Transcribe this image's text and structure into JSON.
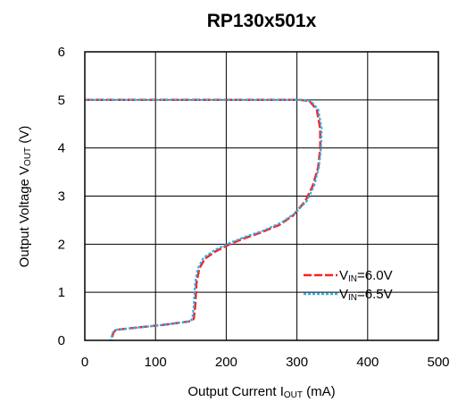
{
  "chart_data": {
    "type": "line",
    "title": "RP130x501x",
    "xlabel": "Output Current I",
    "xlabel_sub": "OUT",
    "xlabel_unit": " (mA)",
    "ylabel": "Output Voltage V",
    "ylabel_sub": "OUT",
    "ylabel_unit": " (V)",
    "xlim": [
      0,
      500
    ],
    "ylim": [
      0,
      6
    ],
    "x_ticks": [
      "0",
      "100",
      "200",
      "300",
      "400",
      "500"
    ],
    "y_ticks": [
      "0",
      "1",
      "2",
      "3",
      "4",
      "5",
      "6"
    ],
    "grid": true,
    "legend_position": "bottom-right",
    "series": [
      {
        "name": "V",
        "name_sub": "IN",
        "name_rest": "=6.0V",
        "color": "#ff2020",
        "style": "dashed",
        "points": [
          [
            0,
            5.0
          ],
          [
            305,
            5.0
          ],
          [
            318,
            4.97
          ],
          [
            328,
            4.8
          ],
          [
            333,
            4.4
          ],
          [
            333,
            4.0
          ],
          [
            330,
            3.6
          ],
          [
            322,
            3.2
          ],
          [
            312,
            2.9
          ],
          [
            295,
            2.6
          ],
          [
            275,
            2.4
          ],
          [
            250,
            2.25
          ],
          [
            225,
            2.12
          ],
          [
            205,
            2.0
          ],
          [
            185,
            1.85
          ],
          [
            170,
            1.7
          ],
          [
            162,
            1.5
          ],
          [
            158,
            1.2
          ],
          [
            156,
            0.7
          ],
          [
            154,
            0.45
          ],
          [
            150,
            0.4
          ],
          [
            110,
            0.32
          ],
          [
            70,
            0.26
          ],
          [
            44,
            0.22
          ],
          [
            40,
            0.15
          ],
          [
            38,
            0.0
          ]
        ]
      },
      {
        "name": "V",
        "name_sub": "IN",
        "name_rest": "=6.5V",
        "color": "#2ab0e8",
        "style": "dotted",
        "points": [
          [
            0,
            5.0
          ],
          [
            308,
            5.0
          ],
          [
            320,
            4.97
          ],
          [
            330,
            4.8
          ],
          [
            335,
            4.4
          ],
          [
            334,
            4.0
          ],
          [
            331,
            3.6
          ],
          [
            324,
            3.2
          ],
          [
            314,
            2.9
          ],
          [
            298,
            2.65
          ],
          [
            278,
            2.45
          ],
          [
            252,
            2.28
          ],
          [
            226,
            2.15
          ],
          [
            204,
            2.02
          ],
          [
            184,
            1.88
          ],
          [
            168,
            1.72
          ],
          [
            160,
            1.5
          ],
          [
            156,
            1.2
          ],
          [
            154,
            0.7
          ],
          [
            152,
            0.45
          ],
          [
            149,
            0.4
          ],
          [
            110,
            0.32
          ],
          [
            70,
            0.26
          ],
          [
            43,
            0.22
          ],
          [
            39,
            0.15
          ],
          [
            37,
            0.0
          ]
        ]
      }
    ]
  }
}
